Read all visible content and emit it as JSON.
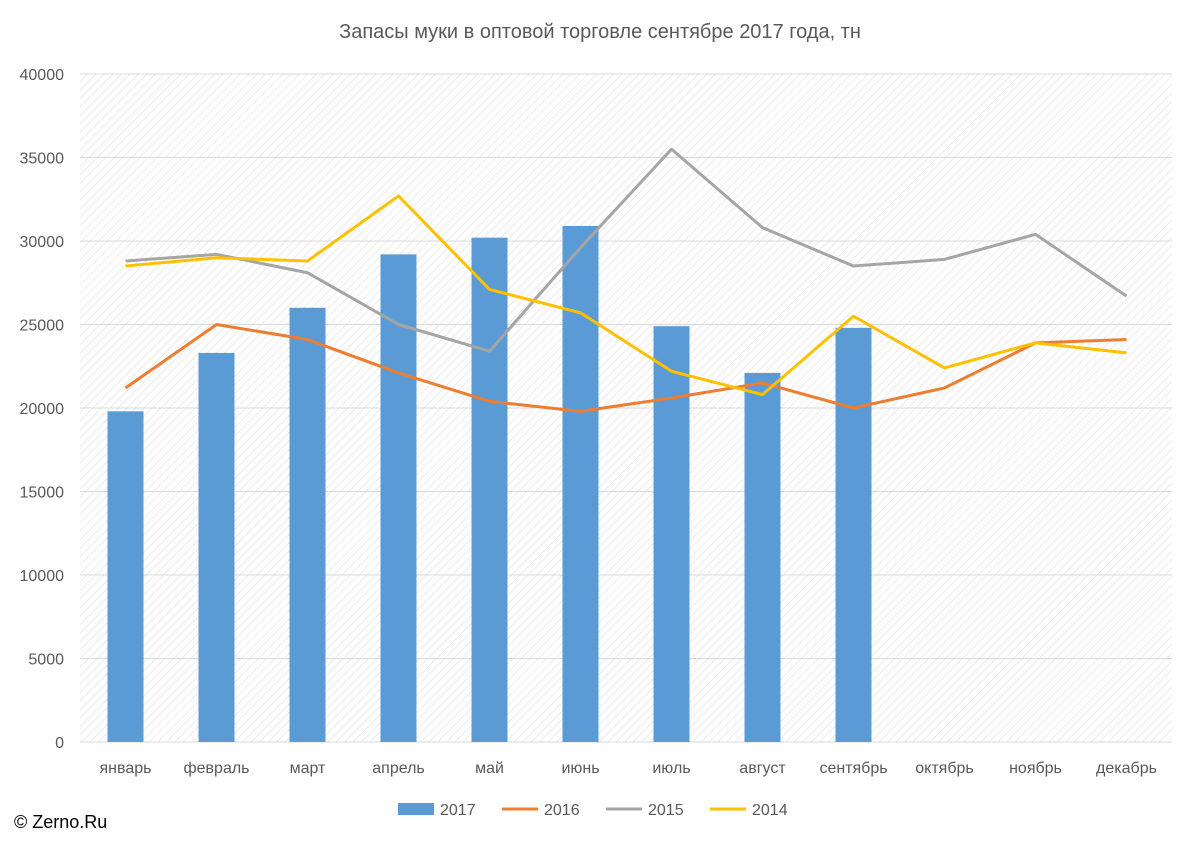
{
  "chart_data": {
    "type": "bar",
    "title": "Запасы муки в оптовой торговле сентябре 2017 года, тн",
    "categories": [
      "январь",
      "февраль",
      "март",
      "апрель",
      "май",
      "июнь",
      "июль",
      "август",
      "сентябрь",
      "октябрь",
      "ноябрь",
      "декабрь"
    ],
    "ylim": [
      0,
      40000
    ],
    "yticks": [
      0,
      5000,
      10000,
      15000,
      20000,
      25000,
      30000,
      35000,
      40000
    ],
    "grid": true,
    "legend_position": "bottom",
    "series": [
      {
        "name": "2017",
        "kind": "bar",
        "color": "#5B9BD5",
        "values": [
          19800,
          23300,
          26000,
          29200,
          30200,
          30900,
          24900,
          22100,
          24800,
          null,
          null,
          null
        ]
      },
      {
        "name": "2016",
        "kind": "line",
        "color": "#ED7D31",
        "values": [
          21200,
          25000,
          24100,
          22100,
          20400,
          19800,
          20600,
          21500,
          20000,
          21200,
          23900,
          24100
        ]
      },
      {
        "name": "2015",
        "kind": "line",
        "color": "#A5A5A5",
        "values": [
          28800,
          29200,
          28100,
          25000,
          23400,
          29600,
          35500,
          30800,
          28500,
          28900,
          30400,
          26700
        ]
      },
      {
        "name": "2014",
        "kind": "line",
        "color": "#FFC000",
        "values": [
          28500,
          29000,
          28800,
          32700,
          27100,
          25700,
          22200,
          20800,
          25500,
          22400,
          23900,
          23300
        ]
      }
    ]
  },
  "copyright": "© Zerno.Ru"
}
